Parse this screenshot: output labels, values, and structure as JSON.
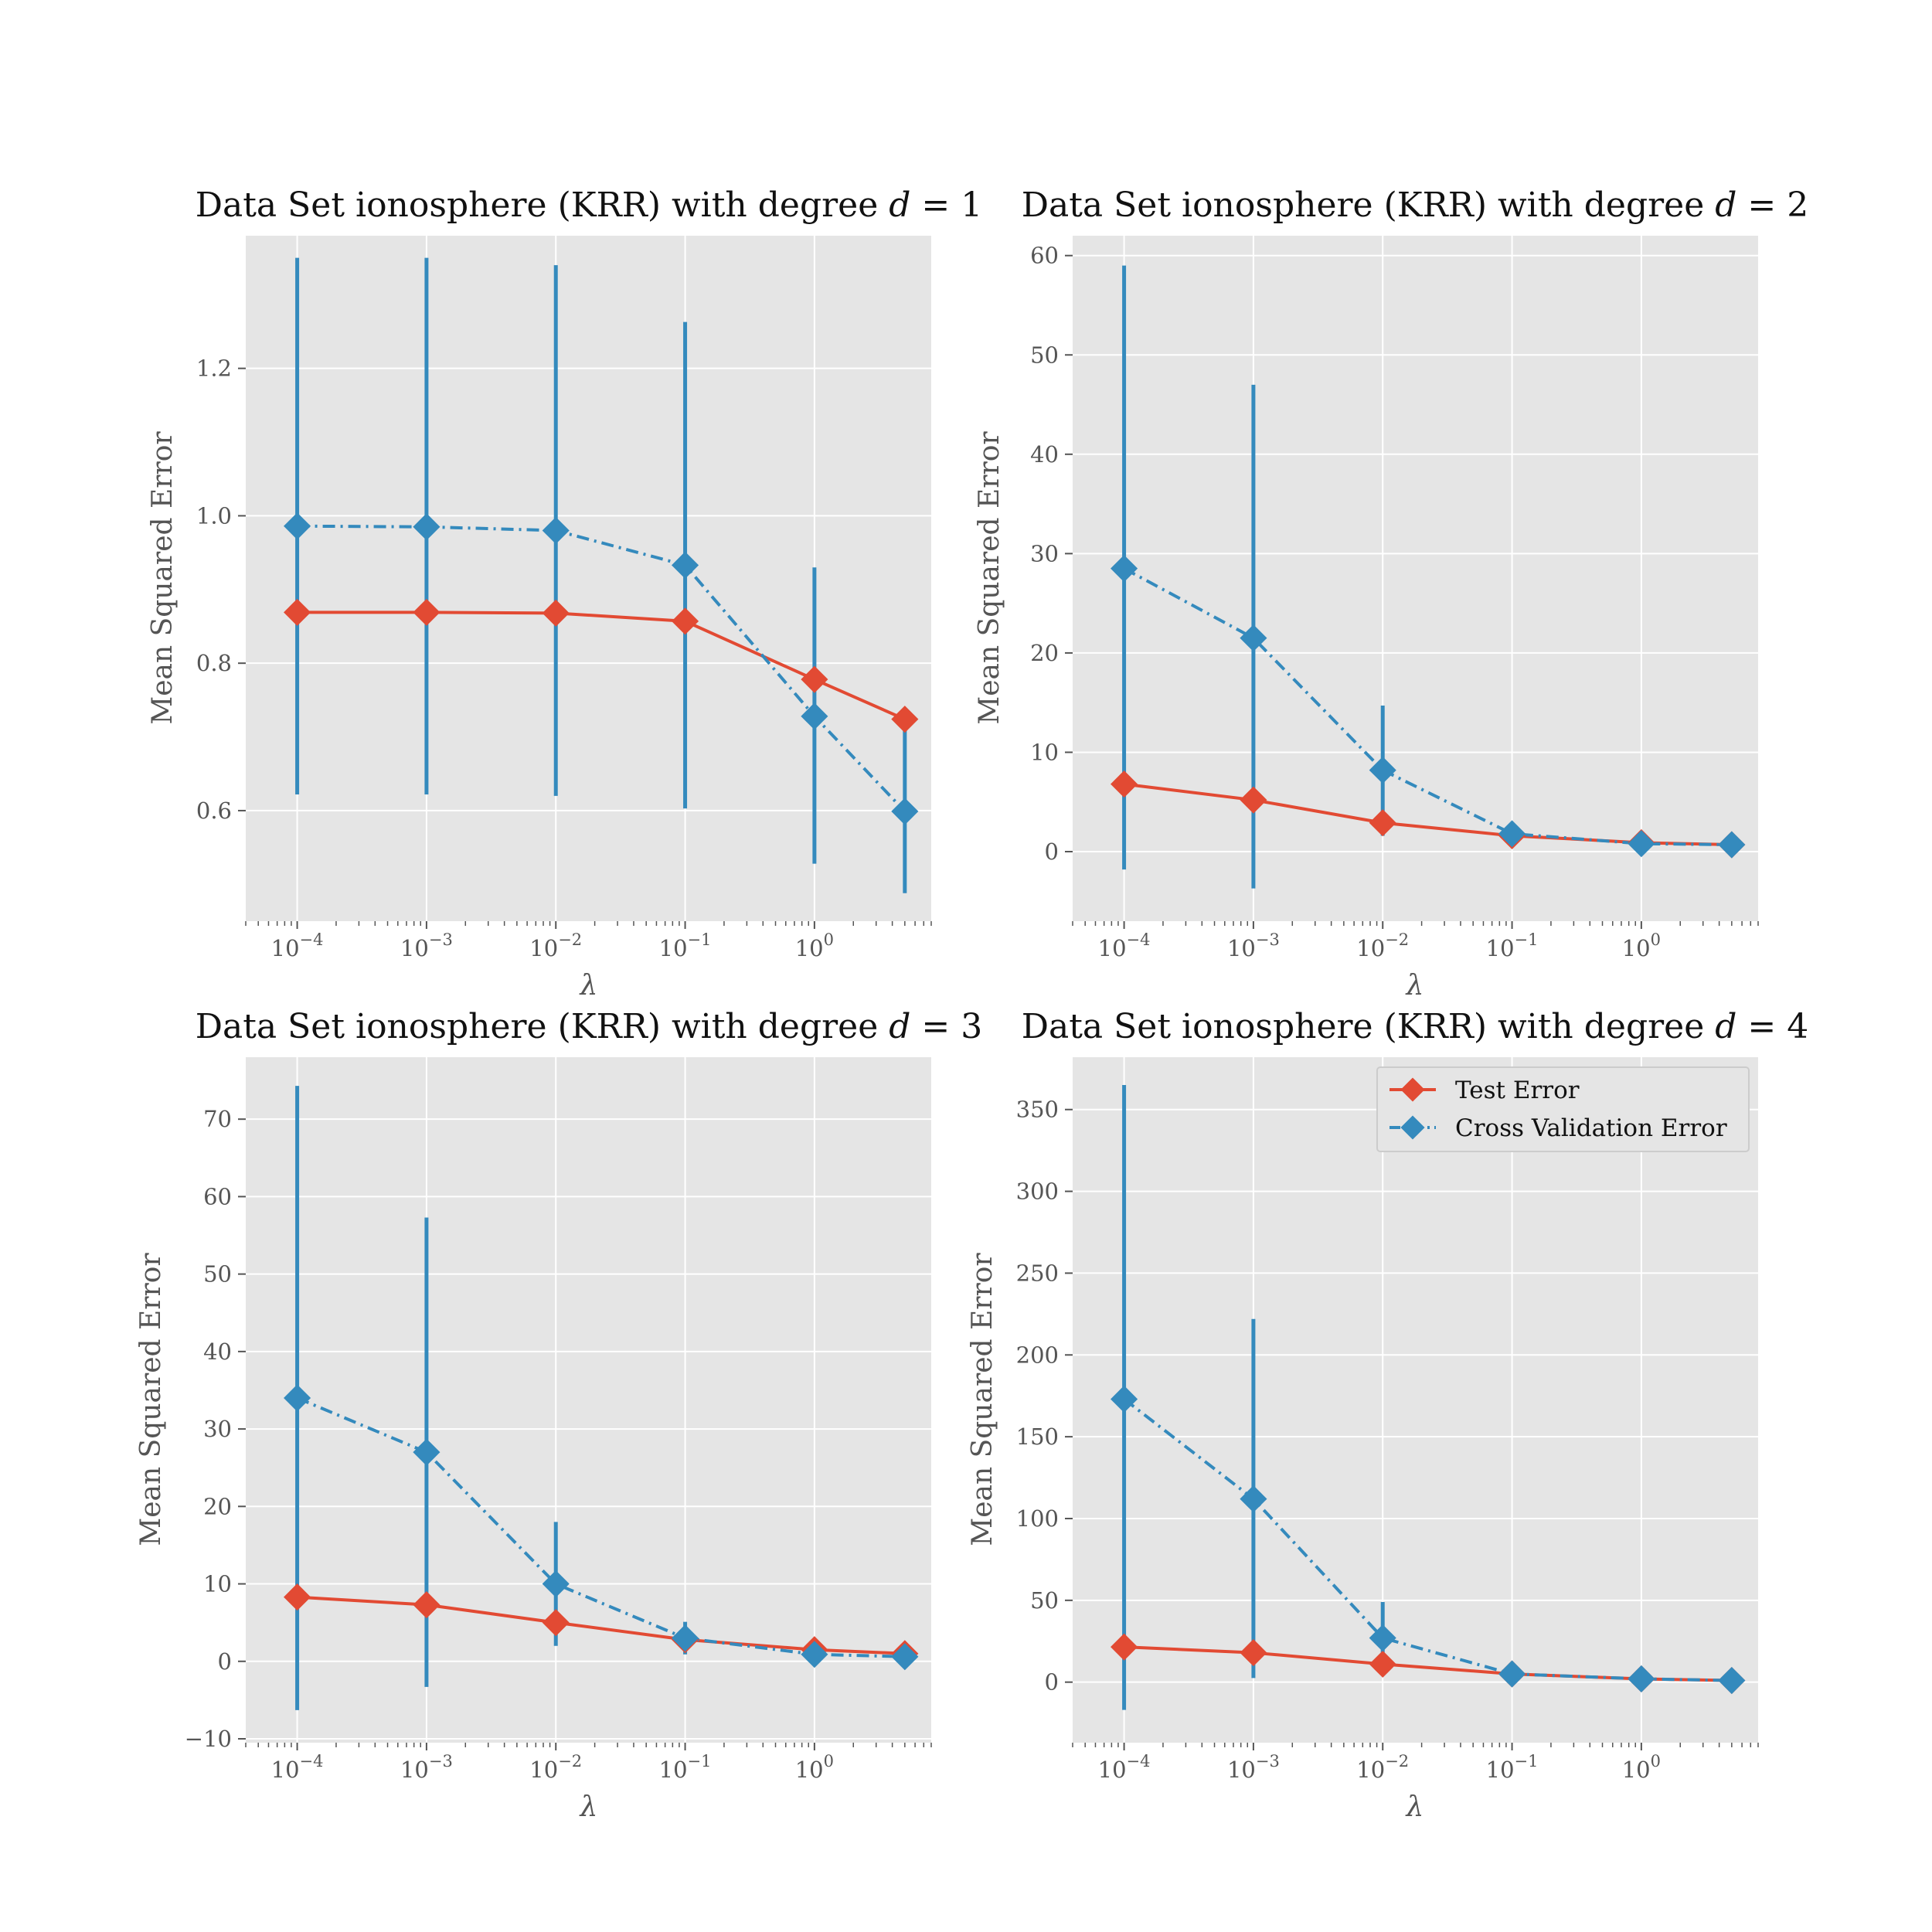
{
  "colors": {
    "test": "#e24a33",
    "cv": "#348abd",
    "panel_bg": "#e5e5e5",
    "grid": "#ffffff",
    "tick_text": "#555555"
  },
  "legend": {
    "test_label": "Test Error",
    "cv_label": "Cross Validation Error"
  },
  "chart_data": [
    {
      "type": "line",
      "title": "Data Set ionosphere (KRR) with degree d = 1",
      "title_prefix": "Data Set ionosphere (KRR) with degree ",
      "title_var": "d",
      "title_eq": " = 1",
      "xlabel": "λ",
      "ylabel": "Mean Squared Error",
      "xscale": "log",
      "x": [
        0.0001,
        0.001,
        0.01,
        0.1,
        1,
        5
      ],
      "xlim": [
        4e-05,
        8
      ],
      "ylim": [
        0.45,
        1.38
      ],
      "yticks": [
        0.6,
        0.8,
        1.0,
        1.2
      ],
      "ytick_labels": [
        "0.6",
        "0.8",
        "1.0",
        "1.2"
      ],
      "xtick_labels": [
        {
          "base": "10",
          "exp": "−4"
        },
        {
          "base": "10",
          "exp": "−3"
        },
        {
          "base": "10",
          "exp": "−2"
        },
        {
          "base": "10",
          "exp": "−1"
        },
        {
          "base": "10",
          "exp": "0"
        }
      ],
      "series": [
        {
          "name": "Test Error",
          "values": [
            0.869,
            0.869,
            0.868,
            0.857,
            0.778,
            0.724
          ]
        },
        {
          "name": "Cross Validation Error",
          "values": [
            0.986,
            0.985,
            0.98,
            0.933,
            0.728,
            0.599
          ],
          "err_low": [
            0.622,
            0.622,
            0.62,
            0.603,
            0.528,
            0.488
          ],
          "err_high": [
            1.35,
            1.35,
            1.34,
            1.263,
            0.93,
            0.718
          ]
        }
      ],
      "legend": false
    },
    {
      "type": "line",
      "title": "Data Set ionosphere (KRR) with degree d = 2",
      "title_prefix": "Data Set ionosphere (KRR) with degree ",
      "title_var": "d",
      "title_eq": " = 2",
      "xlabel": "λ",
      "ylabel": "Mean Squared Error",
      "xscale": "log",
      "x": [
        0.0001,
        0.001,
        0.01,
        0.1,
        1,
        5
      ],
      "xlim": [
        4e-05,
        8
      ],
      "ylim": [
        -7,
        62
      ],
      "yticks": [
        0,
        10,
        20,
        30,
        40,
        50,
        60
      ],
      "ytick_labels": [
        "0",
        "10",
        "20",
        "30",
        "40",
        "50",
        "60"
      ],
      "xtick_labels": [
        {
          "base": "10",
          "exp": "−4"
        },
        {
          "base": "10",
          "exp": "−3"
        },
        {
          "base": "10",
          "exp": "−2"
        },
        {
          "base": "10",
          "exp": "−1"
        },
        {
          "base": "10",
          "exp": "0"
        }
      ],
      "series": [
        {
          "name": "Test Error",
          "values": [
            6.8,
            5.2,
            2.9,
            1.6,
            0.9,
            0.7
          ]
        },
        {
          "name": "Cross Validation Error",
          "values": [
            28.5,
            21.5,
            8.2,
            1.8,
            0.8,
            0.7
          ],
          "err_low": [
            -1.8,
            -3.7,
            1.6,
            1.4,
            0.6,
            0.5
          ],
          "err_high": [
            59,
            47,
            14.7,
            2.2,
            1.0,
            0.9
          ]
        }
      ],
      "legend": false
    },
    {
      "type": "line",
      "title": "Data Set ionosphere (KRR) with degree d = 3",
      "title_prefix": "Data Set ionosphere (KRR) with degree ",
      "title_var": "d",
      "title_eq": " = 3",
      "xlabel": "λ",
      "ylabel": "Mean Squared Error",
      "xscale": "log",
      "x": [
        0.0001,
        0.001,
        0.01,
        0.1,
        1,
        5
      ],
      "xlim": [
        4e-05,
        8
      ],
      "ylim": [
        -10.5,
        78
      ],
      "yticks": [
        -10,
        0,
        10,
        20,
        30,
        40,
        50,
        60,
        70
      ],
      "ytick_labels": [
        "−10",
        "0",
        "10",
        "20",
        "30",
        "40",
        "50",
        "60",
        "70"
      ],
      "xtick_labels": [
        {
          "base": "10",
          "exp": "−4"
        },
        {
          "base": "10",
          "exp": "−3"
        },
        {
          "base": "10",
          "exp": "−2"
        },
        {
          "base": "10",
          "exp": "−1"
        },
        {
          "base": "10",
          "exp": "0"
        }
      ],
      "series": [
        {
          "name": "Test Error",
          "values": [
            8.3,
            7.3,
            5.0,
            2.8,
            1.5,
            1.0
          ]
        },
        {
          "name": "Cross Validation Error",
          "values": [
            34,
            27,
            10,
            3.0,
            0.9,
            0.6
          ],
          "err_low": [
            -6.3,
            -3.3,
            2.0,
            0.9,
            0.4,
            0.2
          ],
          "err_high": [
            74.3,
            57.3,
            18.0,
            5.1,
            1.4,
            1.0
          ]
        }
      ],
      "legend": false
    },
    {
      "type": "line",
      "title": "Data Set ionosphere (KRR) with degree d = 4",
      "title_prefix": "Data Set ionosphere (KRR) with degree ",
      "title_var": "d",
      "title_eq": " = 4",
      "xlabel": "λ",
      "ylabel": "Mean Squared Error",
      "xscale": "log",
      "x": [
        0.0001,
        0.001,
        0.01,
        0.1,
        1,
        5
      ],
      "xlim": [
        4e-05,
        8
      ],
      "ylim": [
        -37,
        382
      ],
      "yticks": [
        0,
        50,
        100,
        150,
        200,
        250,
        300,
        350
      ],
      "ytick_labels": [
        "0",
        "50",
        "100",
        "150",
        "200",
        "250",
        "300",
        "350"
      ],
      "xtick_labels": [
        {
          "base": "10",
          "exp": "−4"
        },
        {
          "base": "10",
          "exp": "−3"
        },
        {
          "base": "10",
          "exp": "−2"
        },
        {
          "base": "10",
          "exp": "−1"
        },
        {
          "base": "10",
          "exp": "0"
        }
      ],
      "series": [
        {
          "name": "Test Error",
          "values": [
            21.5,
            18,
            11,
            5,
            2,
            1
          ]
        },
        {
          "name": "Cross Validation Error",
          "values": [
            173,
            112,
            27,
            5,
            2,
            1
          ],
          "err_low": [
            -17,
            2.5,
            5,
            3,
            1,
            0.5
          ],
          "err_high": [
            365,
            222,
            49,
            7,
            3,
            1.5
          ]
        }
      ],
      "legend": true,
      "legend_loc": "upper right"
    }
  ]
}
